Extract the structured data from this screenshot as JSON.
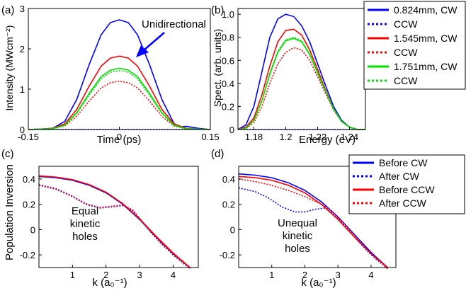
{
  "colors": {
    "blue": "#0000ff",
    "red": "#ff0000",
    "green": "#00e000",
    "axis": "#000000"
  },
  "chart_data": [
    {
      "panel": "(a)",
      "type": "line",
      "xlabel": "Time (ps)",
      "ylabel": "Intensity (MWcm⁻²)",
      "xlim": [
        -0.15,
        0.15
      ],
      "ylim": [
        0,
        3
      ],
      "xticks": [
        -0.15,
        0,
        0.15
      ],
      "yticks": [
        0,
        1,
        2,
        3
      ],
      "xtick_labels": [
        "-0.15",
        "0",
        "0.15"
      ],
      "ytick_labels": [
        "0",
        "1",
        "2",
        "3"
      ],
      "annotation": "Unidirectional",
      "series": [
        {
          "key": "cw1",
          "color": "blue",
          "dash": "solid",
          "x": [
            -0.15,
            -0.13,
            -0.11,
            -0.09,
            -0.07,
            -0.05,
            -0.03,
            -0.015,
            0,
            0.015,
            0.03,
            0.05,
            0.07,
            0.09,
            0.1,
            0.11,
            0.13,
            0.15
          ],
          "y": [
            0,
            0.01,
            0.03,
            0.2,
            0.75,
            1.6,
            2.35,
            2.65,
            2.72,
            2.65,
            2.35,
            1.6,
            0.75,
            0.15,
            0.06,
            0.08,
            0.03,
            0
          ]
        },
        {
          "key": "ccw1",
          "color": "blue",
          "dash": "dotted",
          "x": [
            -0.15,
            0.15
          ],
          "y": [
            0,
            0
          ]
        },
        {
          "key": "cw2",
          "color": "red",
          "dash": "solid",
          "x": [
            -0.15,
            -0.13,
            -0.11,
            -0.09,
            -0.07,
            -0.05,
            -0.03,
            -0.015,
            0,
            0.015,
            0.03,
            0.05,
            0.07,
            0.09,
            0.11,
            0.13,
            0.15
          ],
          "y": [
            0,
            0.01,
            0.03,
            0.14,
            0.5,
            1.07,
            1.57,
            1.77,
            1.82,
            1.77,
            1.57,
            1.07,
            0.5,
            0.14,
            0.03,
            0.01,
            0
          ]
        },
        {
          "key": "ccw2",
          "color": "red",
          "dash": "dotted",
          "x": [
            -0.15,
            -0.13,
            -0.11,
            -0.09,
            -0.07,
            -0.05,
            -0.03,
            -0.015,
            0,
            0.015,
            0.03,
            0.05,
            0.07,
            0.09,
            0.11,
            0.13,
            0.15
          ],
          "y": [
            0,
            0.01,
            0.02,
            0.09,
            0.33,
            0.7,
            1.03,
            1.16,
            1.2,
            1.16,
            1.03,
            0.7,
            0.33,
            0.09,
            0.02,
            0.01,
            0
          ]
        },
        {
          "key": "cw3",
          "color": "green",
          "dash": "solid",
          "x": [
            -0.15,
            -0.13,
            -0.11,
            -0.09,
            -0.07,
            -0.05,
            -0.03,
            -0.015,
            0,
            0.015,
            0.03,
            0.05,
            0.07,
            0.09,
            0.11,
            0.13,
            0.15
          ],
          "y": [
            0,
            0.01,
            0.02,
            0.11,
            0.42,
            0.89,
            1.31,
            1.47,
            1.52,
            1.47,
            1.31,
            0.89,
            0.42,
            0.11,
            0.02,
            0.01,
            0
          ]
        },
        {
          "key": "ccw3",
          "color": "green",
          "dash": "dotted",
          "x": [
            -0.15,
            -0.13,
            -0.11,
            -0.09,
            -0.07,
            -0.05,
            -0.03,
            -0.015,
            0,
            0.015,
            0.03,
            0.05,
            0.07,
            0.09,
            0.11,
            0.13,
            0.15
          ],
          "y": [
            0,
            0.01,
            0.02,
            0.1,
            0.4,
            0.85,
            1.26,
            1.42,
            1.46,
            1.42,
            1.26,
            0.85,
            0.4,
            0.1,
            0.02,
            0.01,
            0
          ]
        }
      ]
    },
    {
      "panel": "(b)",
      "type": "line",
      "xlabel": "Energy (eV)",
      "ylabel": "Spect. (arb. units)",
      "xlim": [
        1.17,
        1.25
      ],
      "ylim": [
        0,
        1.05
      ],
      "xticks": [
        1.18,
        1.2,
        1.22,
        1.24
      ],
      "yticks": [
        0,
        0.2,
        0.4,
        0.6,
        0.8,
        1.0
      ],
      "xtick_labels": [
        "1.18",
        "1.2",
        "1.22",
        "1.24"
      ],
      "ytick_labels": [
        "0",
        "0.2",
        "0.4",
        "0.6",
        "0.8",
        "1.0"
      ],
      "series": [
        {
          "key": "cw1",
          "color": "blue",
          "dash": "solid",
          "x": [
            1.17,
            1.175,
            1.18,
            1.185,
            1.19,
            1.195,
            1.2,
            1.205,
            1.21,
            1.215,
            1.22,
            1.225,
            1.23,
            1.235,
            1.24,
            1.245,
            1.25
          ],
          "y": [
            0.0,
            0.04,
            0.2,
            0.5,
            0.8,
            0.96,
            1.0,
            0.98,
            0.9,
            0.76,
            0.57,
            0.38,
            0.2,
            0.08,
            0.02,
            0.0,
            0.0
          ]
        },
        {
          "key": "ccw1",
          "color": "blue",
          "dash": "dotted",
          "x": [
            1.17,
            1.25
          ],
          "y": [
            0,
            0
          ]
        },
        {
          "key": "cw2",
          "color": "red",
          "dash": "solid",
          "x": [
            1.17,
            1.175,
            1.18,
            1.185,
            1.19,
            1.195,
            1.2,
            1.205,
            1.21,
            1.215,
            1.22,
            1.225,
            1.23,
            1.235,
            1.24,
            1.245,
            1.25
          ],
          "y": [
            0.0,
            0.02,
            0.1,
            0.3,
            0.55,
            0.76,
            0.86,
            0.87,
            0.82,
            0.69,
            0.52,
            0.34,
            0.18,
            0.07,
            0.02,
            0.0,
            0.0
          ]
        },
        {
          "key": "ccw2",
          "color": "red",
          "dash": "dotted",
          "x": [
            1.17,
            1.175,
            1.18,
            1.185,
            1.19,
            1.195,
            1.2,
            1.205,
            1.21,
            1.215,
            1.22,
            1.225,
            1.23,
            1.235,
            1.24,
            1.245,
            1.25
          ],
          "y": [
            0.0,
            0.01,
            0.06,
            0.2,
            0.4,
            0.57,
            0.67,
            0.71,
            0.69,
            0.6,
            0.46,
            0.31,
            0.17,
            0.07,
            0.02,
            0.0,
            0.0
          ]
        },
        {
          "key": "cw3",
          "color": "green",
          "dash": "solid",
          "x": [
            1.17,
            1.175,
            1.18,
            1.185,
            1.19,
            1.195,
            1.2,
            1.205,
            1.21,
            1.215,
            1.22,
            1.225,
            1.23,
            1.235,
            1.24,
            1.245,
            1.25
          ],
          "y": [
            0.0,
            0.01,
            0.08,
            0.25,
            0.48,
            0.67,
            0.77,
            0.79,
            0.76,
            0.65,
            0.49,
            0.33,
            0.18,
            0.07,
            0.02,
            0.0,
            0.0
          ]
        },
        {
          "key": "ccw3",
          "color": "green",
          "dash": "dotted",
          "x": [
            1.17,
            1.175,
            1.18,
            1.185,
            1.19,
            1.195,
            1.2,
            1.205,
            1.21,
            1.215,
            1.22,
            1.225,
            1.23,
            1.235,
            1.24,
            1.245,
            1.25
          ],
          "y": [
            0.0,
            0.01,
            0.08,
            0.25,
            0.49,
            0.68,
            0.78,
            0.8,
            0.77,
            0.66,
            0.5,
            0.33,
            0.18,
            0.07,
            0.02,
            0.0,
            0.0
          ]
        }
      ],
      "legend": [
        {
          "label": "0.824mm, CW",
          "color": "blue",
          "dash": "solid"
        },
        {
          "label": "CCW",
          "color": "blue",
          "dash": "dotted"
        },
        {
          "label": "1.545mm, CW",
          "color": "red",
          "dash": "solid"
        },
        {
          "label": "CCW",
          "color": "red",
          "dash": "dotted"
        },
        {
          "label": "1.751mm, CW",
          "color": "green",
          "dash": "solid"
        },
        {
          "label": "CCW",
          "color": "green",
          "dash": "dotted"
        }
      ]
    },
    {
      "panel": "(c)",
      "type": "line",
      "xlabel": "k (a₀⁻¹)",
      "ylabel": "Population Inversion",
      "xlim": [
        0,
        4.75
      ],
      "ylim": [
        -0.3,
        0.5
      ],
      "xticks": [
        1,
        2,
        3,
        4
      ],
      "yticks": [
        -0.2,
        0,
        0.2,
        0.4
      ],
      "xtick_labels": [
        "1",
        "2",
        "3",
        "4"
      ],
      "ytick_labels": [
        "-0.2",
        "0",
        "0.2",
        "0.4"
      ],
      "annotation": [
        "Equal",
        "kinetic",
        "holes"
      ],
      "series": [
        {
          "key": "before_cw",
          "color": "blue",
          "dash": "solid",
          "x": [
            0,
            0.5,
            1,
            1.5,
            2,
            2.5,
            3,
            3.5,
            4,
            4.5
          ],
          "y": [
            0.42,
            0.41,
            0.39,
            0.35,
            0.29,
            0.2,
            0.08,
            -0.06,
            -0.19,
            -0.3
          ]
        },
        {
          "key": "after_cw",
          "color": "blue",
          "dash": "dotted",
          "x": [
            0,
            0.5,
            1,
            1.4,
            1.8,
            2.2,
            2.5,
            2.8,
            3.2,
            3.6,
            4.0,
            4.5
          ],
          "y": [
            0.35,
            0.32,
            0.26,
            0.2,
            0.17,
            0.18,
            0.19,
            0.15,
            0.02,
            -0.1,
            -0.2,
            -0.31
          ]
        },
        {
          "key": "before_ccw",
          "color": "red",
          "dash": "solid",
          "x": [
            0,
            0.5,
            1,
            1.5,
            2,
            2.5,
            3,
            3.5,
            4,
            4.5
          ],
          "y": [
            0.425,
            0.415,
            0.395,
            0.355,
            0.295,
            0.205,
            0.085,
            -0.055,
            -0.185,
            -0.3
          ]
        },
        {
          "key": "after_ccw",
          "color": "red",
          "dash": "dotted",
          "x": [
            0,
            0.5,
            1,
            1.4,
            1.8,
            2.2,
            2.5,
            2.8,
            3.2,
            3.6,
            4.0,
            4.5
          ],
          "y": [
            0.355,
            0.325,
            0.265,
            0.205,
            0.175,
            0.185,
            0.195,
            0.155,
            0.025,
            -0.095,
            -0.195,
            -0.305
          ]
        }
      ]
    },
    {
      "panel": "(d)",
      "type": "line",
      "xlabel": "k (a₀⁻¹)",
      "ylabel": "",
      "xlim": [
        0,
        4.75
      ],
      "ylim": [
        -0.3,
        0.5
      ],
      "xticks": [
        1,
        2,
        3,
        4
      ],
      "yticks": [
        -0.2,
        0,
        0.2,
        0.4
      ],
      "xtick_labels": [
        "1",
        "2",
        "3",
        "4"
      ],
      "ytick_labels": [
        "-0.2",
        "0",
        "0.2",
        "0.4"
      ],
      "annotation": [
        "Unequal",
        "kinetic",
        "holes"
      ],
      "series": [
        {
          "key": "before_cw",
          "color": "blue",
          "dash": "solid",
          "x": [
            0,
            0.5,
            1,
            1.5,
            2,
            2.5,
            3,
            3.5,
            4,
            4.5
          ],
          "y": [
            0.44,
            0.43,
            0.41,
            0.37,
            0.31,
            0.22,
            0.1,
            -0.04,
            -0.18,
            -0.3
          ]
        },
        {
          "key": "after_cw",
          "color": "blue",
          "dash": "dotted",
          "x": [
            0,
            0.5,
            0.9,
            1.3,
            1.7,
            2.0,
            2.3,
            2.6,
            2.9,
            3.2,
            3.6,
            4.0,
            4.5
          ],
          "y": [
            0.33,
            0.3,
            0.25,
            0.18,
            0.14,
            0.14,
            0.16,
            0.17,
            0.12,
            0.03,
            -0.09,
            -0.2,
            -0.31
          ]
        },
        {
          "key": "before_ccw",
          "color": "red",
          "dash": "solid",
          "x": [
            0,
            0.5,
            1,
            1.5,
            2,
            2.5,
            3,
            3.5,
            4,
            4.5
          ],
          "y": [
            0.42,
            0.41,
            0.39,
            0.35,
            0.29,
            0.2,
            0.08,
            -0.06,
            -0.19,
            -0.3
          ]
        },
        {
          "key": "after_ccw",
          "color": "red",
          "dash": "dotted",
          "x": [
            0,
            0.5,
            1,
            1.5,
            2,
            2.5,
            2.8,
            3.2,
            3.6,
            4.0,
            4.5
          ],
          "y": [
            0.4,
            0.38,
            0.35,
            0.31,
            0.26,
            0.2,
            0.15,
            0.04,
            -0.08,
            -0.19,
            -0.31
          ]
        }
      ],
      "legend": [
        {
          "label": "Before CW",
          "color": "blue",
          "dash": "solid"
        },
        {
          "label": "After CW",
          "color": "blue",
          "dash": "dotted"
        },
        {
          "label": "Before CCW",
          "color": "red",
          "dash": "solid"
        },
        {
          "label": "After CCW",
          "color": "red",
          "dash": "dotted"
        }
      ]
    }
  ]
}
